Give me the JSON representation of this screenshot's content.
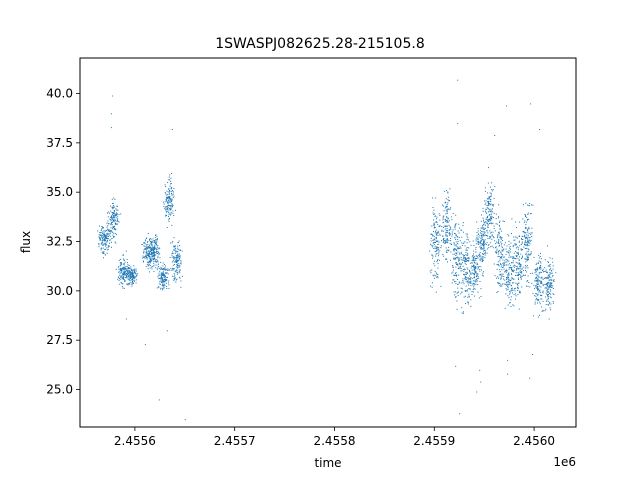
{
  "chart_data": {
    "type": "scatter",
    "title": "1SWASPJ082625.28-215105.8",
    "xlabel": "time",
    "ylabel": "flux",
    "x_offset_label": "1e6",
    "xlim": [
      2.455545,
      2.456042
    ],
    "ylim": [
      23.1,
      41.8
    ],
    "x_ticks": [
      2.4556,
      2.4557,
      2.4558,
      2.4559,
      2.456
    ],
    "x_tick_labels": [
      "2.4556",
      "2.4557",
      "2.4558",
      "2.4559",
      "2.4560"
    ],
    "y_ticks": [
      25.0,
      27.5,
      30.0,
      32.5,
      35.0,
      37.5,
      40.0
    ],
    "y_tick_labels": [
      "25.0",
      "27.5",
      "30.0",
      "32.5",
      "35.0",
      "37.5",
      "40.0"
    ],
    "grid": false,
    "legend": "none",
    "marker_color": "#1f77b4",
    "series": [
      {
        "clusters": [
          {
            "x": 2.455569,
            "y_low": 31.6,
            "y_high": 33.6
          },
          {
            "x": 2.455578,
            "y_low": 32.0,
            "y_high": 35.2
          },
          {
            "x": 2.455588,
            "y_low": 29.8,
            "y_high": 32.2
          },
          {
            "x": 2.455596,
            "y_low": 30.0,
            "y_high": 31.6
          },
          {
            "x": 2.455613,
            "y_low": 30.6,
            "y_high": 33.2
          },
          {
            "x": 2.455619,
            "y_low": 30.8,
            "y_high": 33.4
          },
          {
            "x": 2.455628,
            "y_low": 29.6,
            "y_high": 31.8
          },
          {
            "x": 2.455634,
            "y_low": 32.8,
            "y_high": 36.4
          },
          {
            "x": 2.455641,
            "y_low": 29.9,
            "y_high": 33.2
          },
          {
            "x": 2.455901,
            "y_low": 29.4,
            "y_high": 35.6
          },
          {
            "x": 2.455912,
            "y_low": 30.4,
            "y_high": 36.2
          },
          {
            "x": 2.455922,
            "y_low": 28.4,
            "y_high": 35.0
          },
          {
            "x": 2.455931,
            "y_low": 28.0,
            "y_high": 34.2
          },
          {
            "x": 2.45594,
            "y_low": 28.8,
            "y_high": 33.2
          },
          {
            "x": 2.455948,
            "y_low": 30.4,
            "y_high": 34.4
          },
          {
            "x": 2.455955,
            "y_low": 31.0,
            "y_high": 36.8
          },
          {
            "x": 2.455965,
            "y_low": 29.0,
            "y_high": 35.0
          },
          {
            "x": 2.455975,
            "y_low": 28.2,
            "y_high": 33.6
          },
          {
            "x": 2.455984,
            "y_low": 28.6,
            "y_high": 34.2
          },
          {
            "x": 2.455993,
            "y_low": 29.2,
            "y_high": 35.8
          },
          {
            "x": 2.456004,
            "y_low": 28.0,
            "y_high": 32.8
          },
          {
            "x": 2.456015,
            "y_low": 28.2,
            "y_high": 32.4
          }
        ],
        "outliers": [
          [
            2.455577,
            39.9
          ],
          [
            2.455576,
            39.0
          ],
          [
            2.455576,
            38.3
          ],
          [
            2.455624,
            24.5
          ],
          [
            2.455637,
            38.2
          ],
          [
            2.455632,
            28.0
          ],
          [
            2.45561,
            27.3
          ],
          [
            2.455591,
            28.6
          ],
          [
            2.45565,
            23.5
          ],
          [
            2.455923,
            40.7
          ],
          [
            2.455923,
            38.5
          ],
          [
            2.455925,
            23.8
          ],
          [
            2.455921,
            26.2
          ],
          [
            2.455942,
            24.9
          ],
          [
            2.455946,
            25.4
          ],
          [
            2.45596,
            37.9
          ],
          [
            2.455972,
            39.4
          ],
          [
            2.455973,
            25.8
          ],
          [
            2.455973,
            26.5
          ],
          [
            2.455996,
            39.5
          ],
          [
            2.455995,
            25.6
          ],
          [
            2.455998,
            26.8
          ],
          [
            2.456005,
            38.2
          ],
          [
            2.455945,
            26.0
          ]
        ]
      }
    ]
  }
}
